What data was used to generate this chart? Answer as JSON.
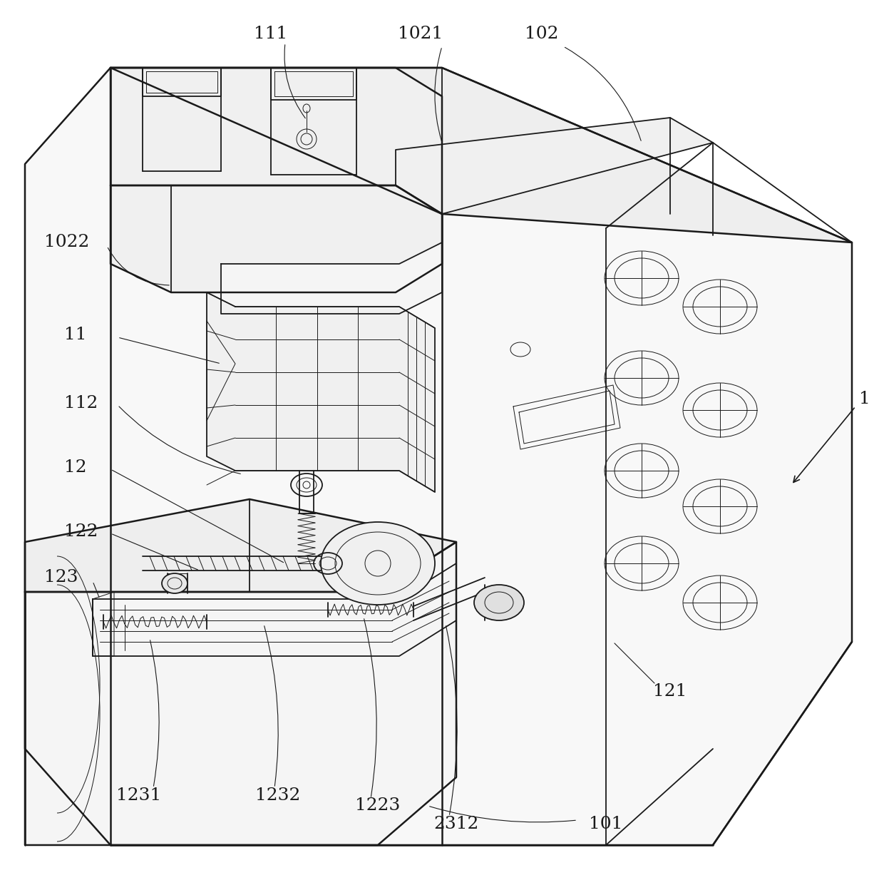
{
  "background_color": "#ffffff",
  "line_color": "#1a1a1a",
  "lw": 1.3,
  "lw_thin": 0.7,
  "lw_thick": 1.8,
  "fig_width": 12.4,
  "fig_height": 12.41,
  "label_fontsize": 16,
  "label_font": "DejaVu Serif"
}
